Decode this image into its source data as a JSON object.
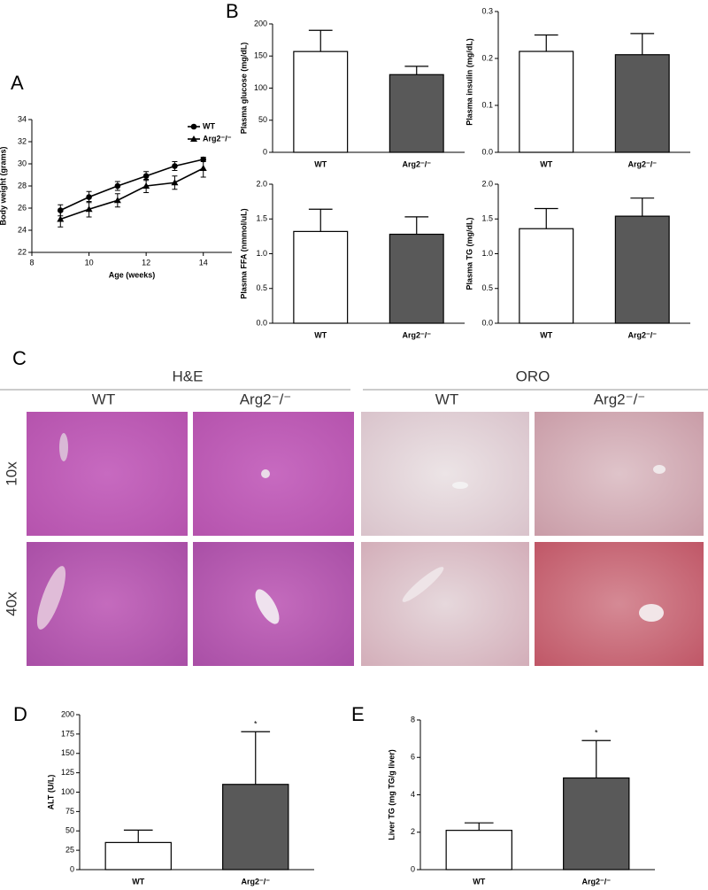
{
  "chart_data": [
    {
      "type": "line",
      "panel": "A",
      "xlabel": "Age (weeks)",
      "ylabel": "Body weight (grams)",
      "x": [
        9,
        10,
        11,
        12,
        13,
        14
      ],
      "xlim": [
        8,
        15
      ],
      "xticks": [
        8,
        10,
        12,
        14
      ],
      "ylim": [
        22,
        34
      ],
      "yticks": [
        22,
        24,
        26,
        28,
        30,
        32,
        34
      ],
      "series": [
        {
          "name": "WT",
          "color": "#000000",
          "marker": "circle",
          "values": [
            25.8,
            27.0,
            28.0,
            28.9,
            29.8,
            30.4
          ],
          "errors": [
            0.5,
            0.5,
            0.4,
            0.4,
            0.4,
            0.2
          ]
        },
        {
          "name": "Arg2⁻/⁻",
          "color": "#000000",
          "marker": "triangle",
          "values": [
            25.0,
            25.9,
            26.7,
            28.0,
            28.3,
            29.6
          ],
          "errors": [
            0.7,
            0.7,
            0.6,
            0.6,
            0.6,
            0.8
          ]
        }
      ]
    },
    {
      "type": "bar",
      "panel": "B",
      "ylabel": "Plasma glucose (mg/dL)",
      "categories": [
        "WT",
        "Arg2⁻/⁻"
      ],
      "values": [
        157,
        121
      ],
      "errors": [
        33,
        13
      ],
      "colors": [
        "#ffffff",
        "#595959"
      ],
      "ylim": [
        0,
        200
      ],
      "yticks": [
        0,
        50,
        100,
        150,
        200
      ]
    },
    {
      "type": "bar",
      "ylabel": "Plasma insulin (mg/dL)",
      "categories": [
        "WT",
        "Arg2⁻/⁻"
      ],
      "values": [
        0.215,
        0.208
      ],
      "errors": [
        0.035,
        0.045
      ],
      "colors": [
        "#ffffff",
        "#595959"
      ],
      "ylim": [
        0,
        0.3
      ],
      "yticks": [
        {
          "value": 0,
          "label": "0.0"
        },
        0.1,
        0.2,
        0.3
      ]
    },
    {
      "type": "bar",
      "ylabel": "Plasma FFA (nmmol/uL)",
      "categories": [
        "WT",
        "Arg2⁻/⁻"
      ],
      "values": [
        1.32,
        1.28
      ],
      "errors": [
        0.32,
        0.25
      ],
      "colors": [
        "#ffffff",
        "#595959"
      ],
      "ylim": [
        0,
        2
      ],
      "yticks": [
        {
          "value": 0,
          "label": "0.0"
        },
        0.5,
        {
          "value": 1,
          "label": "1.0"
        },
        1.5,
        {
          "value": 2,
          "label": "2.0"
        }
      ]
    },
    {
      "type": "bar",
      "ylabel": "Plasma TG (mg/dL)",
      "categories": [
        "WT",
        "Arg2⁻/⁻"
      ],
      "values": [
        1.36,
        1.54
      ],
      "errors": [
        0.29,
        0.26
      ],
      "colors": [
        "#ffffff",
        "#595959"
      ],
      "ylim": [
        0,
        2
      ],
      "yticks": [
        {
          "value": 0,
          "label": "0.0"
        },
        0.5,
        {
          "value": 1,
          "label": "1.0"
        },
        1.5,
        {
          "value": 2,
          "label": "2.0"
        }
      ]
    },
    {
      "type": "bar",
      "panel": "D",
      "ylabel": "ALT (U/L)",
      "categories": [
        "WT",
        "Arg2⁻/⁻"
      ],
      "values": [
        35,
        110
      ],
      "errors": [
        16,
        68
      ],
      "colors": [
        "#ffffff",
        "#595959"
      ],
      "annotation": "*",
      "ylim": [
        0,
        200
      ],
      "yticks": [
        0,
        25,
        50,
        75,
        100,
        125,
        150,
        175,
        200
      ]
    },
    {
      "type": "bar",
      "panel": "E",
      "ylabel": "Liver TG (mg TG/g liver)",
      "categories": [
        "WT",
        "Arg2⁻/⁻"
      ],
      "values": [
        2.1,
        4.9
      ],
      "errors": [
        0.4,
        2.0
      ],
      "colors": [
        "#ffffff",
        "#595959"
      ],
      "annotation": "*",
      "ylim": [
        0,
        8
      ],
      "yticks": [
        0,
        2,
        4,
        6,
        8
      ]
    }
  ],
  "histology": {
    "panel": "C",
    "groups": [
      "H&E",
      "ORO"
    ],
    "columns": [
      "WT",
      "Arg2⁻/⁻",
      "WT",
      "Arg2⁻/⁻"
    ],
    "rows": [
      "10x",
      "40x"
    ]
  }
}
